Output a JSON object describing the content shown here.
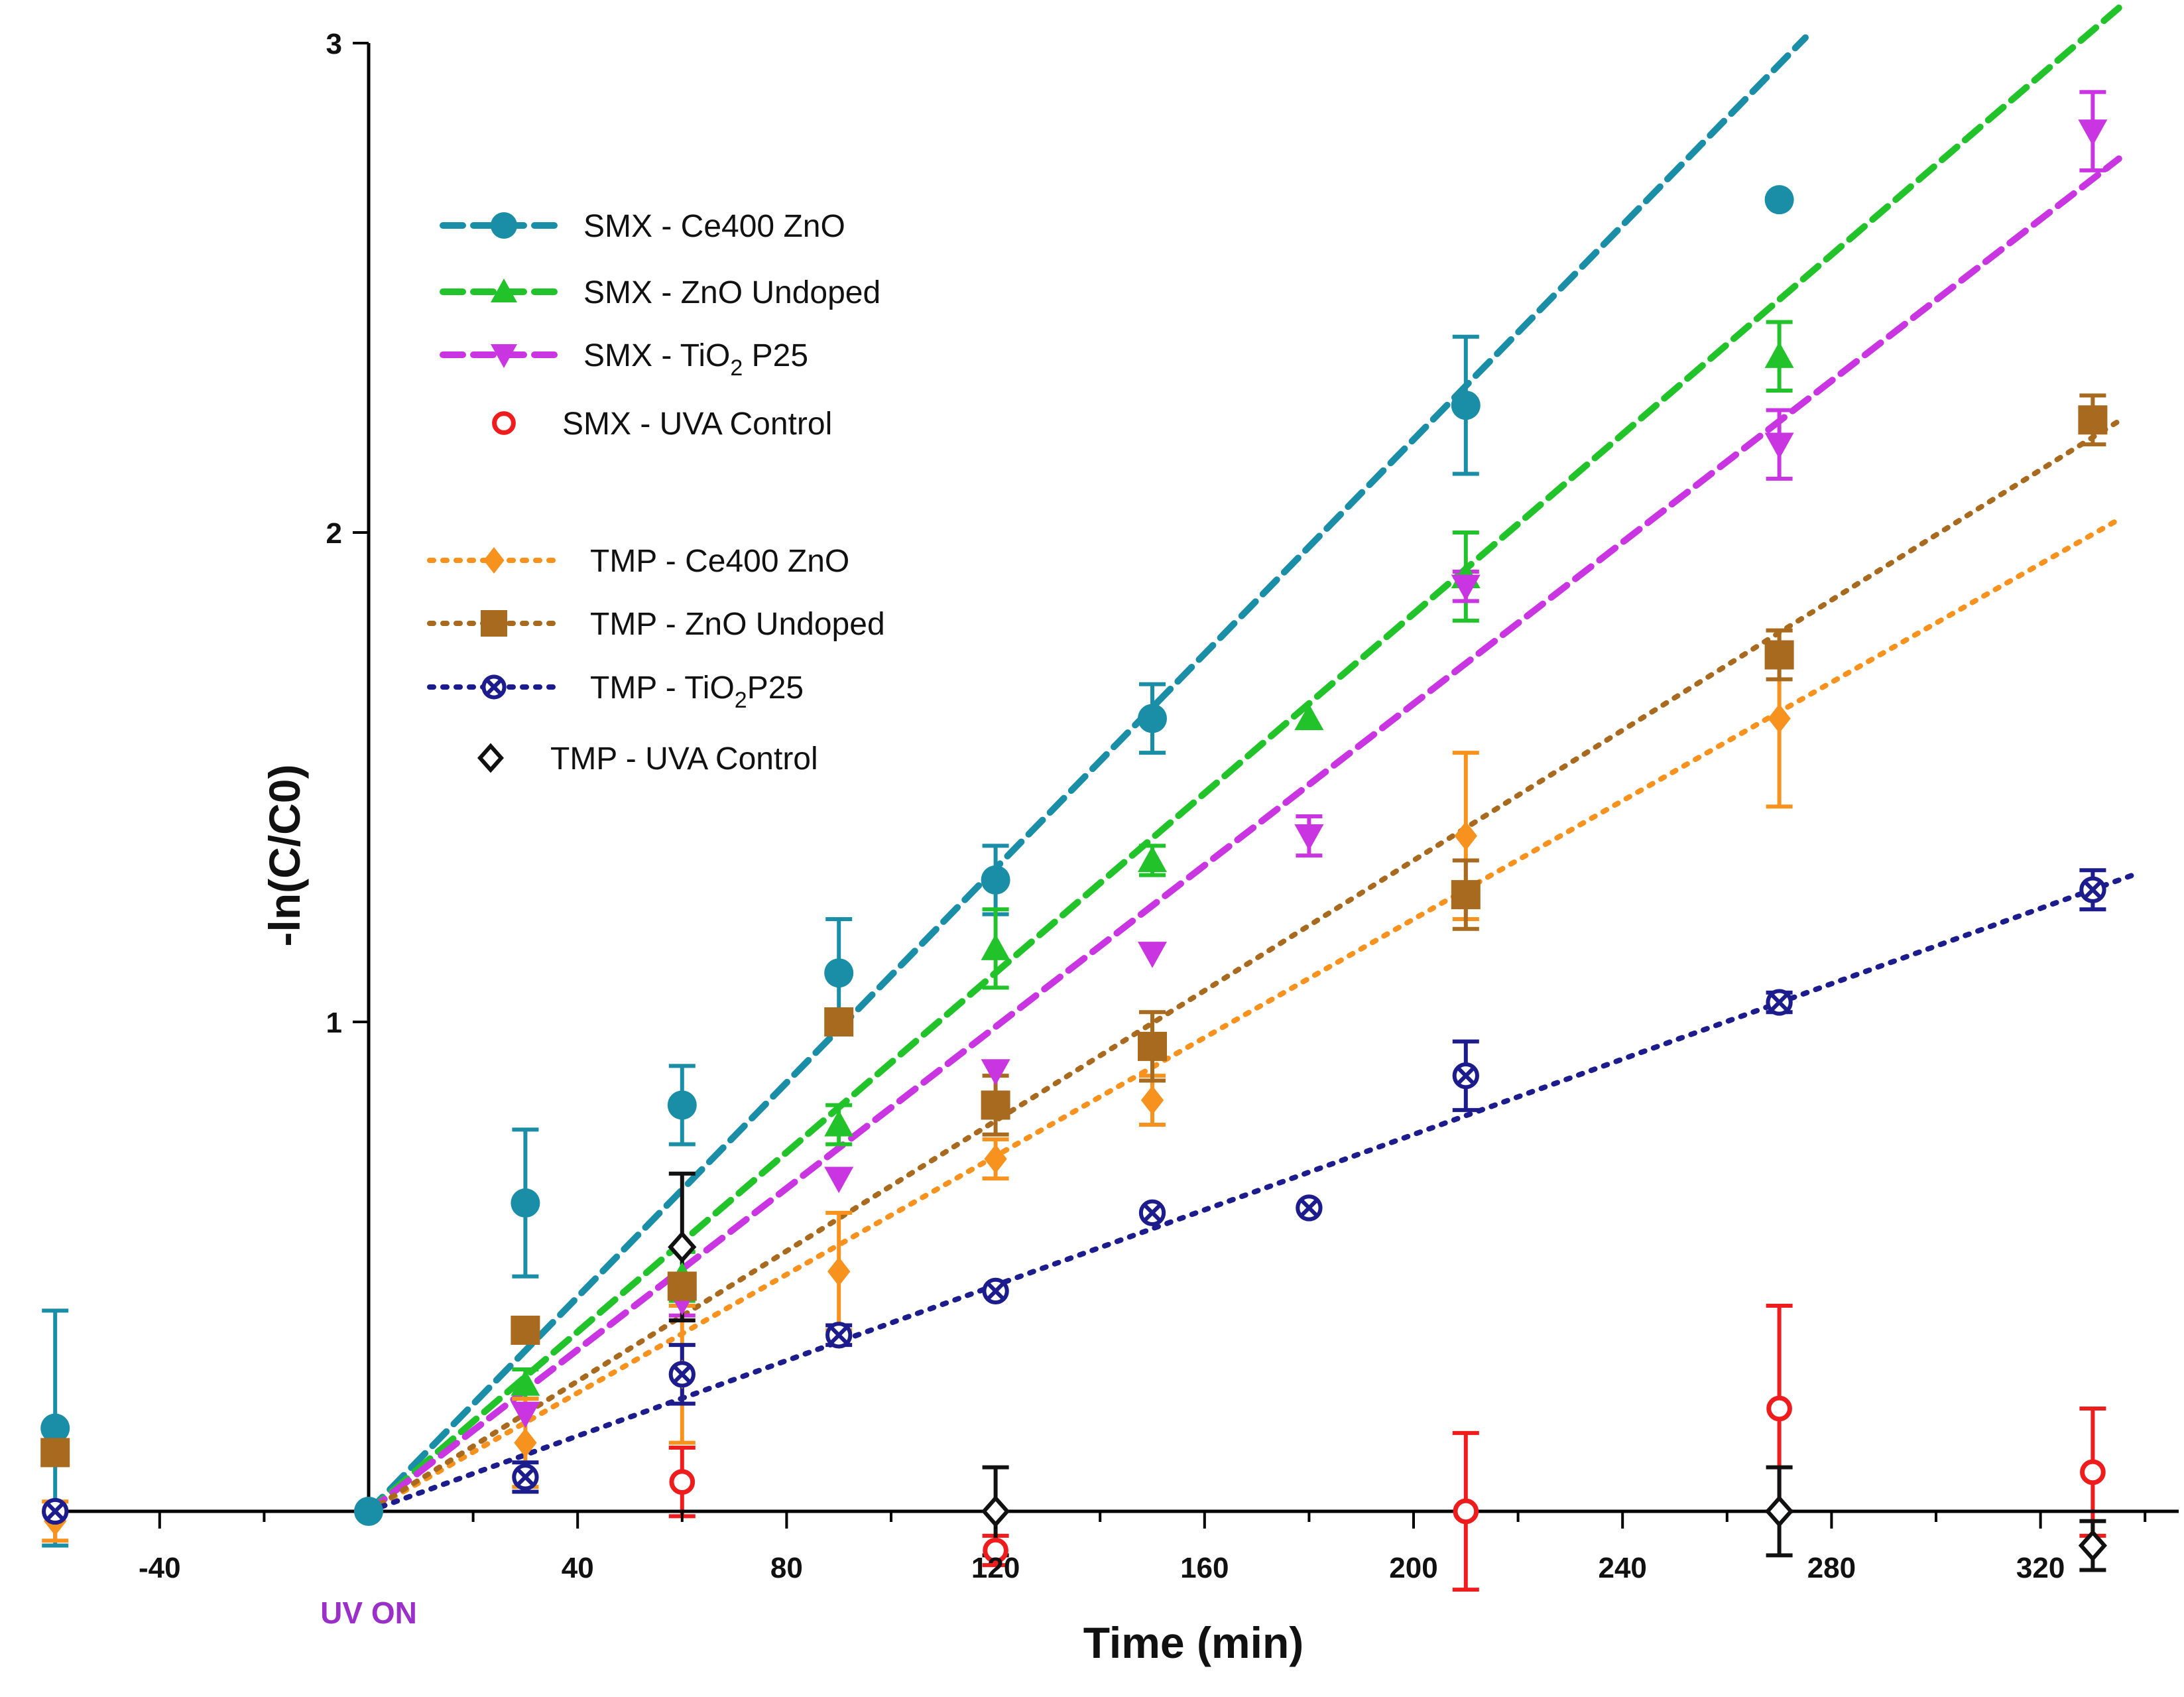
{
  "chart_data": {
    "type": "scatter",
    "title": "",
    "xlabel": "Time (min)",
    "ylabel": "-ln(C/C0)",
    "xlim": [
      -60,
      345
    ],
    "ylim": [
      -0.11,
      3.0
    ],
    "xticks": [
      "-40",
      "40",
      "80",
      "120",
      "160",
      "200",
      "240",
      "280",
      "320"
    ],
    "xtick_values": [
      -40,
      40,
      80,
      120,
      160,
      200,
      240,
      280,
      320
    ],
    "yticks": [
      "1",
      "2",
      "3"
    ],
    "ytick_values": [
      1,
      2,
      3
    ],
    "annotation": {
      "text": "UV ON",
      "x": 0,
      "color": "#9b30c8"
    },
    "series": [
      {
        "name": "SMX - Ce400 ZnO",
        "legend_main": "SMX - Ce400 ZnO",
        "legend_sub": "",
        "legend_post": "",
        "group": "SMX",
        "color": "#1a8ea6",
        "marker": "circle",
        "line": "dashed",
        "fit": {
          "slope": 0.01095,
          "x_end": 275
        },
        "x": [
          -60,
          0,
          30,
          60,
          90,
          120,
          150,
          210,
          270
        ],
        "y": [
          0.17,
          0.0,
          0.63,
          0.83,
          1.1,
          1.29,
          1.62,
          2.26,
          2.68
        ],
        "err": [
          0.24,
          0,
          0.15,
          0.08,
          0.11,
          0.07,
          0.07,
          0.14,
          0
        ]
      },
      {
        "name": "SMX - ZnO Undoped",
        "legend_main": "SMX - ZnO Undoped",
        "legend_sub": "",
        "legend_post": "",
        "group": "SMX",
        "color": "#22c32a",
        "marker": "triangle-up",
        "line": "dashed",
        "fit": {
          "slope": 0.00917,
          "x_end": 335
        },
        "x": [
          30,
          60,
          90,
          120,
          150,
          180,
          210,
          270
        ],
        "y": [
          0.26,
          0.48,
          0.79,
          1.15,
          1.33,
          1.62,
          1.91,
          2.36
        ],
        "err": [
          0.03,
          0.05,
          0.04,
          0.08,
          0.03,
          0,
          0.09,
          0.07
        ]
      },
      {
        "name": "SMX - TiO2 P25",
        "legend_main": "SMX - TiO",
        "legend_sub": "2",
        "legend_post": " P25",
        "group": "SMX",
        "color": "#c935e0",
        "marker": "triangle-down",
        "line": "dashed",
        "fit": {
          "slope": 0.00825,
          "x_end": 335
        },
        "x": [
          30,
          60,
          90,
          120,
          150,
          180,
          210,
          270,
          330
        ],
        "y": [
          0.2,
          0.43,
          0.68,
          0.9,
          1.14,
          1.38,
          1.89,
          2.18,
          2.82
        ],
        "err": [
          0,
          0.03,
          0,
          0,
          0,
          0.04,
          0.03,
          0.07,
          0.08
        ]
      },
      {
        "name": "SMX - UVA Control",
        "legend_main": "SMX - UVA Control",
        "legend_sub": "",
        "legend_post": "",
        "group": "SMX",
        "color": "#ee1c1c",
        "marker": "open-circle",
        "line": "none",
        "x": [
          -60,
          60,
          120,
          210,
          270,
          330
        ],
        "y": [
          0.0,
          0.06,
          -0.08,
          0.0,
          0.21,
          0.08
        ],
        "err": [
          0,
          0.07,
          0.03,
          0.16,
          0.21,
          0.13
        ]
      },
      {
        "name": "TMP - Ce400 ZnO",
        "legend_main": "TMP - Ce400 ZnO",
        "legend_sub": "",
        "legend_post": "",
        "group": "TMP",
        "color": "#f7921e",
        "marker": "diamond",
        "line": "dotted",
        "fit": {
          "slope": 0.00605,
          "x_end": 335
        },
        "x": [
          -60,
          30,
          60,
          90,
          120,
          150,
          210,
          270
        ],
        "y": [
          -0.02,
          0.14,
          0.28,
          0.49,
          0.72,
          0.84,
          1.38,
          1.62
        ],
        "err": [
          0.04,
          0.09,
          0.14,
          0.12,
          0.04,
          0.05,
          0.17,
          0.18
        ]
      },
      {
        "name": "TMP - ZnO Undoped",
        "legend_main": "TMP - ZnO Undoped",
        "legend_sub": "",
        "legend_post": "",
        "group": "TMP",
        "color": "#a86a1e",
        "marker": "square",
        "line": "dotted",
        "fit": {
          "slope": 0.00665,
          "x_end": 335
        },
        "x": [
          -60,
          30,
          60,
          90,
          120,
          150,
          210,
          270,
          330
        ],
        "y": [
          0.12,
          0.37,
          0.46,
          1.0,
          0.83,
          0.95,
          1.26,
          1.75,
          2.23
        ],
        "err": [
          0,
          0,
          0,
          0,
          0.06,
          0.07,
          0.07,
          0.05,
          0.05
        ]
      },
      {
        "name": "TMP - TiO2P25",
        "legend_main": "TMP - TiO",
        "legend_sub": "2",
        "legend_post": "P25",
        "group": "TMP",
        "color": "#1c1c8c",
        "marker": "circle-x",
        "line": "dotted",
        "fit": {
          "slope": 0.00385,
          "x_end": 338
        },
        "x": [
          -60,
          30,
          60,
          90,
          120,
          150,
          180,
          210,
          270,
          330
        ],
        "y": [
          0.0,
          0.07,
          0.28,
          0.36,
          0.45,
          0.61,
          0.62,
          0.89,
          1.04,
          1.27
        ],
        "err": [
          0,
          0.03,
          0.06,
          0.02,
          0,
          0,
          0,
          0.07,
          0.02,
          0.04
        ]
      },
      {
        "name": "TMP - UVA Control",
        "legend_main": "TMP - UVA Control",
        "legend_sub": "",
        "legend_post": "",
        "group": "TMP",
        "color": "#111111",
        "marker": "open-diamond",
        "line": "none",
        "x": [
          60,
          120,
          270,
          330
        ],
        "y": [
          0.54,
          0.0,
          0.0,
          -0.07
        ],
        "err": [
          0.15,
          0.09,
          0.09,
          0.05
        ]
      }
    ]
  }
}
